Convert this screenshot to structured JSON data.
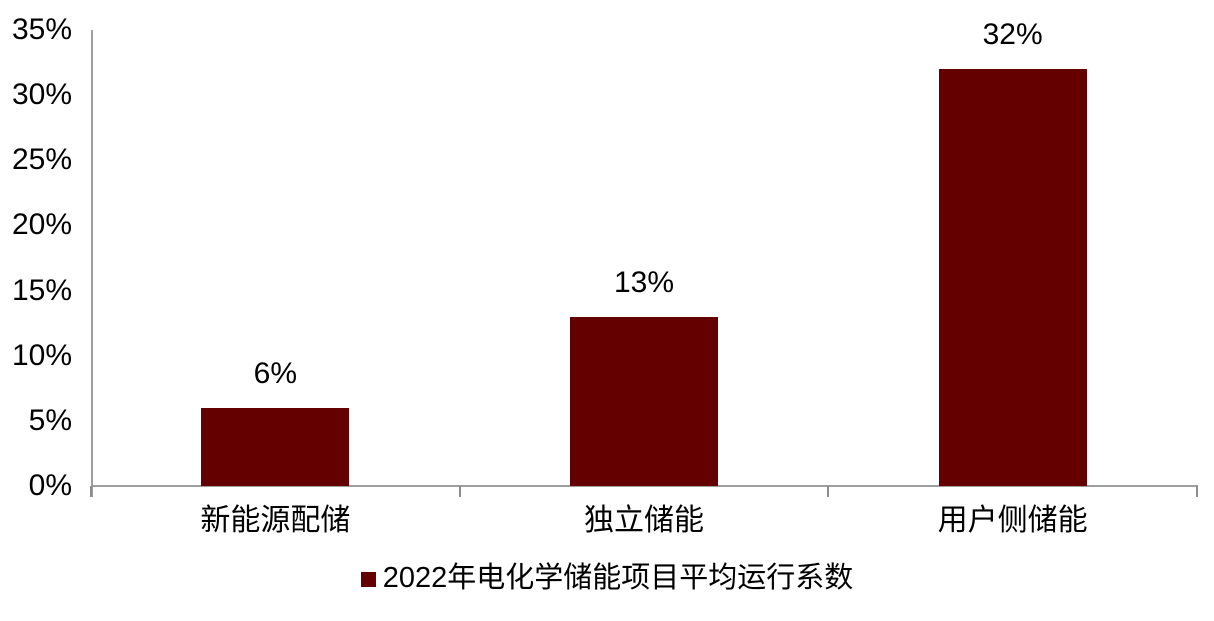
{
  "chart_data": {
    "type": "bar",
    "title": "",
    "categories": [
      "新能源配储",
      "独立储能",
      "用户侧储能"
    ],
    "series": [
      {
        "name": "2022年电化学储能项目平均运行系数",
        "values": [
          6,
          13,
          32
        ]
      }
    ],
    "data_labels": [
      "6%",
      "13%",
      "32%"
    ],
    "y_ticks": [
      {
        "value": 0,
        "label": "0%"
      },
      {
        "value": 5,
        "label": "5%"
      },
      {
        "value": 10,
        "label": "10%"
      },
      {
        "value": 15,
        "label": "15%"
      },
      {
        "value": 20,
        "label": "20%"
      },
      {
        "value": 25,
        "label": "25%"
      },
      {
        "value": 30,
        "label": "30%"
      },
      {
        "value": 35,
        "label": "35%"
      }
    ],
    "xlabel": "",
    "ylabel": "",
    "ylim": [
      0,
      35
    ],
    "grid": false,
    "colors": {
      "bar": "#640000",
      "axis": "#9e9e9e",
      "text": "#000000",
      "background": "#ffffff"
    },
    "legend": {
      "position": "bottom",
      "marker": "square-icon",
      "marker_color": "#640000",
      "label": "2022年电化学储能项目平均运行系数"
    }
  }
}
